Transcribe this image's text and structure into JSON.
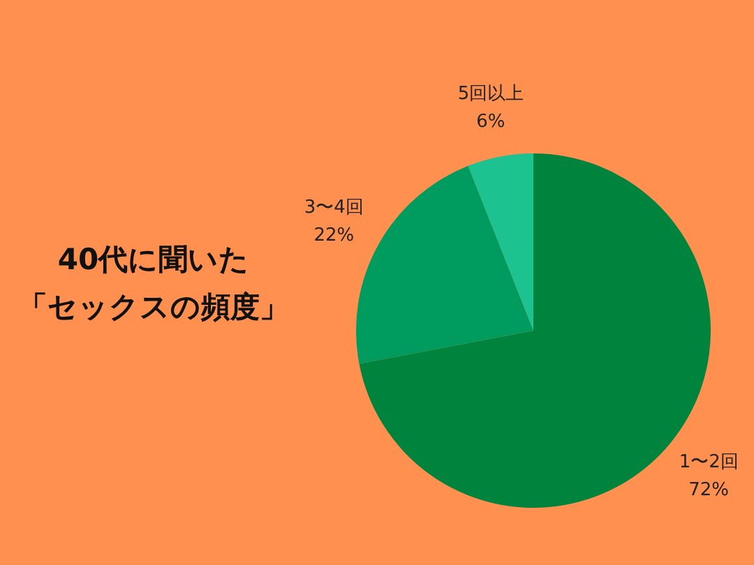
{
  "chart_data": {
    "type": "pie",
    "title": "40代に聞いた",
    "subtitle": "「セックスの頻度」",
    "categories": [
      "1〜2回",
      "3〜4回",
      "5回以上"
    ],
    "values": [
      72,
      22,
      6
    ],
    "value_labels": [
      "72%",
      "22%",
      "6%"
    ],
    "colors": [
      "#00843d",
      "#009b5e",
      "#1cc290"
    ]
  }
}
